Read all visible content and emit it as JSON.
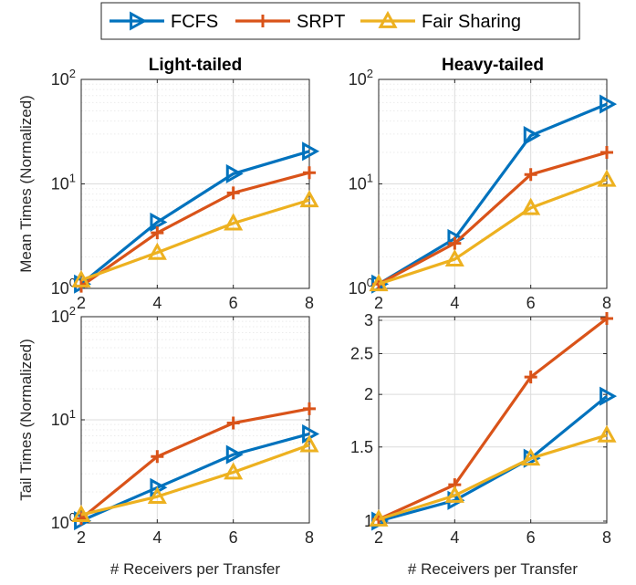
{
  "legend": {
    "entries": [
      {
        "name": "FCFS",
        "marker": "triangle-right",
        "color": "#0072BD"
      },
      {
        "name": "SRPT",
        "marker": "plus",
        "color": "#D95319"
      },
      {
        "name": "Fair Sharing",
        "marker": "triangle-up",
        "color": "#EDB120"
      }
    ],
    "placement": "top-center"
  },
  "chart_data": [
    {
      "type": "line",
      "title": "Light-tailed",
      "xlabel": "",
      "ylabel": "Mean Times (Normalized)",
      "yscale": "log",
      "ylim": [
        1,
        100
      ],
      "xlim": [
        2,
        8
      ],
      "xticks": [
        "2",
        "4",
        "6",
        "8"
      ],
      "yticks": [
        {
          "base": "10",
          "exp": "0",
          "value": 1
        },
        {
          "base": "10",
          "exp": "1",
          "value": 10
        },
        {
          "base": "10",
          "exp": "2",
          "value": 100
        }
      ],
      "grid": true,
      "x": [
        2,
        4,
        6,
        8
      ],
      "series": [
        {
          "name": "FCFS",
          "values": [
            1.1,
            4.3,
            12.5,
            20.5
          ]
        },
        {
          "name": "SRPT",
          "values": [
            1.05,
            3.4,
            8.2,
            12.8
          ]
        },
        {
          "name": "Fair Sharing",
          "values": [
            1.2,
            2.2,
            4.2,
            7.0
          ]
        }
      ]
    },
    {
      "type": "line",
      "title": "Heavy-tailed",
      "xlabel": "",
      "ylabel": "",
      "yscale": "log",
      "ylim": [
        1,
        100
      ],
      "xlim": [
        2,
        8
      ],
      "xticks": [
        "2",
        "4",
        "6",
        "8"
      ],
      "yticks": [
        {
          "base": "10",
          "exp": "0",
          "value": 1
        },
        {
          "base": "10",
          "exp": "1",
          "value": 10
        },
        {
          "base": "10",
          "exp": "2",
          "value": 100
        }
      ],
      "grid": true,
      "x": [
        2,
        4,
        6,
        8
      ],
      "series": [
        {
          "name": "FCFS",
          "values": [
            1.1,
            3.0,
            29.0,
            58.0
          ]
        },
        {
          "name": "SRPT",
          "values": [
            1.1,
            2.7,
            12.3,
            20.0
          ]
        },
        {
          "name": "Fair Sharing",
          "values": [
            1.1,
            1.9,
            5.9,
            11.0
          ]
        }
      ]
    },
    {
      "type": "line",
      "title": "",
      "xlabel": "# Receivers per Transfer",
      "ylabel": "Tail Times (Normalized)",
      "yscale": "log",
      "ylim": [
        1,
        100
      ],
      "xlim": [
        2,
        8
      ],
      "xticks": [
        "2",
        "4",
        "6",
        "8"
      ],
      "yticks": [
        {
          "base": "10",
          "exp": "0",
          "value": 1
        },
        {
          "base": "10",
          "exp": "1",
          "value": 10
        },
        {
          "base": "10",
          "exp": "2",
          "value": 100
        }
      ],
      "grid": true,
      "x": [
        2,
        4,
        6,
        8
      ],
      "series": [
        {
          "name": "FCFS",
          "values": [
            1.05,
            2.2,
            4.6,
            7.3
          ]
        },
        {
          "name": "SRPT",
          "values": [
            1.1,
            4.4,
            9.3,
            12.8
          ]
        },
        {
          "name": "Fair Sharing",
          "values": [
            1.2,
            1.8,
            3.1,
            5.7
          ]
        }
      ]
    },
    {
      "type": "line",
      "title": "",
      "xlabel": "# Receivers per Transfer",
      "ylabel": "",
      "yscale": "log",
      "ylim": [
        0.99,
        3.06
      ],
      "xlim": [
        2,
        8
      ],
      "xticks": [
        "2",
        "4",
        "6",
        "8"
      ],
      "yticks": [
        {
          "label": "1",
          "value": 1
        },
        {
          "label": "1.5",
          "value": 1.5
        },
        {
          "label": "2",
          "value": 2
        },
        {
          "label": "2.5",
          "value": 2.5
        },
        {
          "label": "3",
          "value": 3
        }
      ],
      "grid": true,
      "x": [
        2,
        4,
        6,
        8
      ],
      "series": [
        {
          "name": "FCFS",
          "values": [
            1.0,
            1.12,
            1.41,
            1.98
          ]
        },
        {
          "name": "SRPT",
          "values": [
            1.01,
            1.22,
            2.2,
            3.03
          ]
        },
        {
          "name": "Fair Sharing",
          "values": [
            1.01,
            1.15,
            1.41,
            1.6
          ]
        }
      ]
    }
  ]
}
